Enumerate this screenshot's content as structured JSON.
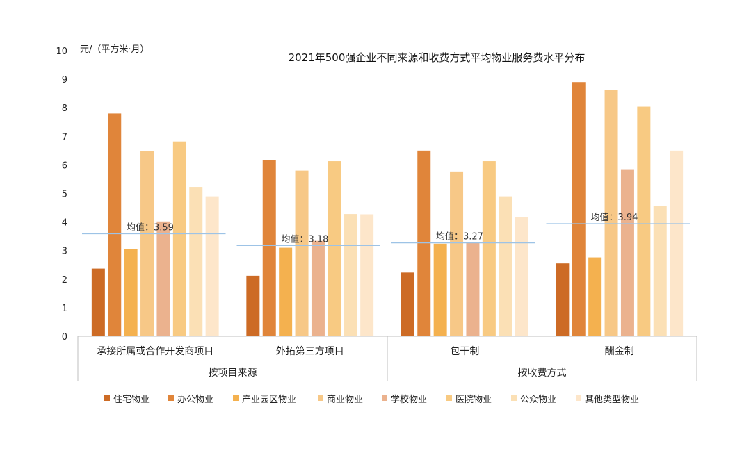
{
  "chart_data": {
    "type": "bar",
    "title": "2021年500强企业不同来源和收费方式平均物业服务费水平分布",
    "y_unit_label": "元/（平方米·月）",
    "ylim": [
      0,
      10
    ],
    "yticks": [
      "0",
      "1",
      "2",
      "3",
      "4",
      "5",
      "6",
      "7",
      "8",
      "9",
      "10"
    ],
    "grid": false,
    "legend_position": "bottom",
    "categories": [
      "承接所属或合作开发商项目",
      "外拓第三方项目",
      "包干制",
      "酬金制"
    ],
    "group_labels": [
      {
        "label": "按项目来源",
        "categories": [
          0,
          1
        ]
      },
      {
        "label": "按收费方式",
        "categories": [
          2,
          3
        ]
      }
    ],
    "averages": [
      {
        "label": "均值：",
        "value": 3.59,
        "value_text": "3.59"
      },
      {
        "label": "均值：",
        "value": 3.18,
        "value_text": "3.18"
      },
      {
        "label": "均值：",
        "value": 3.27,
        "value_text": "3.27"
      },
      {
        "label": "均值：",
        "value": 3.94,
        "value_text": "3.94"
      }
    ],
    "series": [
      {
        "name": "住宅物业",
        "color": "#CD6B25",
        "values": [
          2.37,
          2.12,
          2.23,
          2.55
        ]
      },
      {
        "name": "办公物业",
        "color": "#E0853A",
        "values": [
          7.8,
          6.17,
          6.5,
          8.9
        ]
      },
      {
        "name": "产业园区物业",
        "color": "#F4B14F",
        "values": [
          3.06,
          3.1,
          3.24,
          2.76
        ]
      },
      {
        "name": "商业物业",
        "color": "#F7C887",
        "values": [
          6.48,
          5.8,
          5.77,
          8.62
        ]
      },
      {
        "name": "学校物业",
        "color": "#EBB28E",
        "values": [
          4.02,
          3.34,
          3.3,
          5.85
        ]
      },
      {
        "name": "医院物业",
        "color": "#F8CA82",
        "values": [
          6.82,
          6.13,
          6.13,
          8.04
        ]
      },
      {
        "name": "公众物业",
        "color": "#FBE0B5",
        "values": [
          5.23,
          4.28,
          4.9,
          4.57
        ]
      },
      {
        "name": "其他类型物业",
        "color": "#FDE6CA",
        "values": [
          4.9,
          4.27,
          4.18,
          6.5
        ]
      }
    ]
  }
}
